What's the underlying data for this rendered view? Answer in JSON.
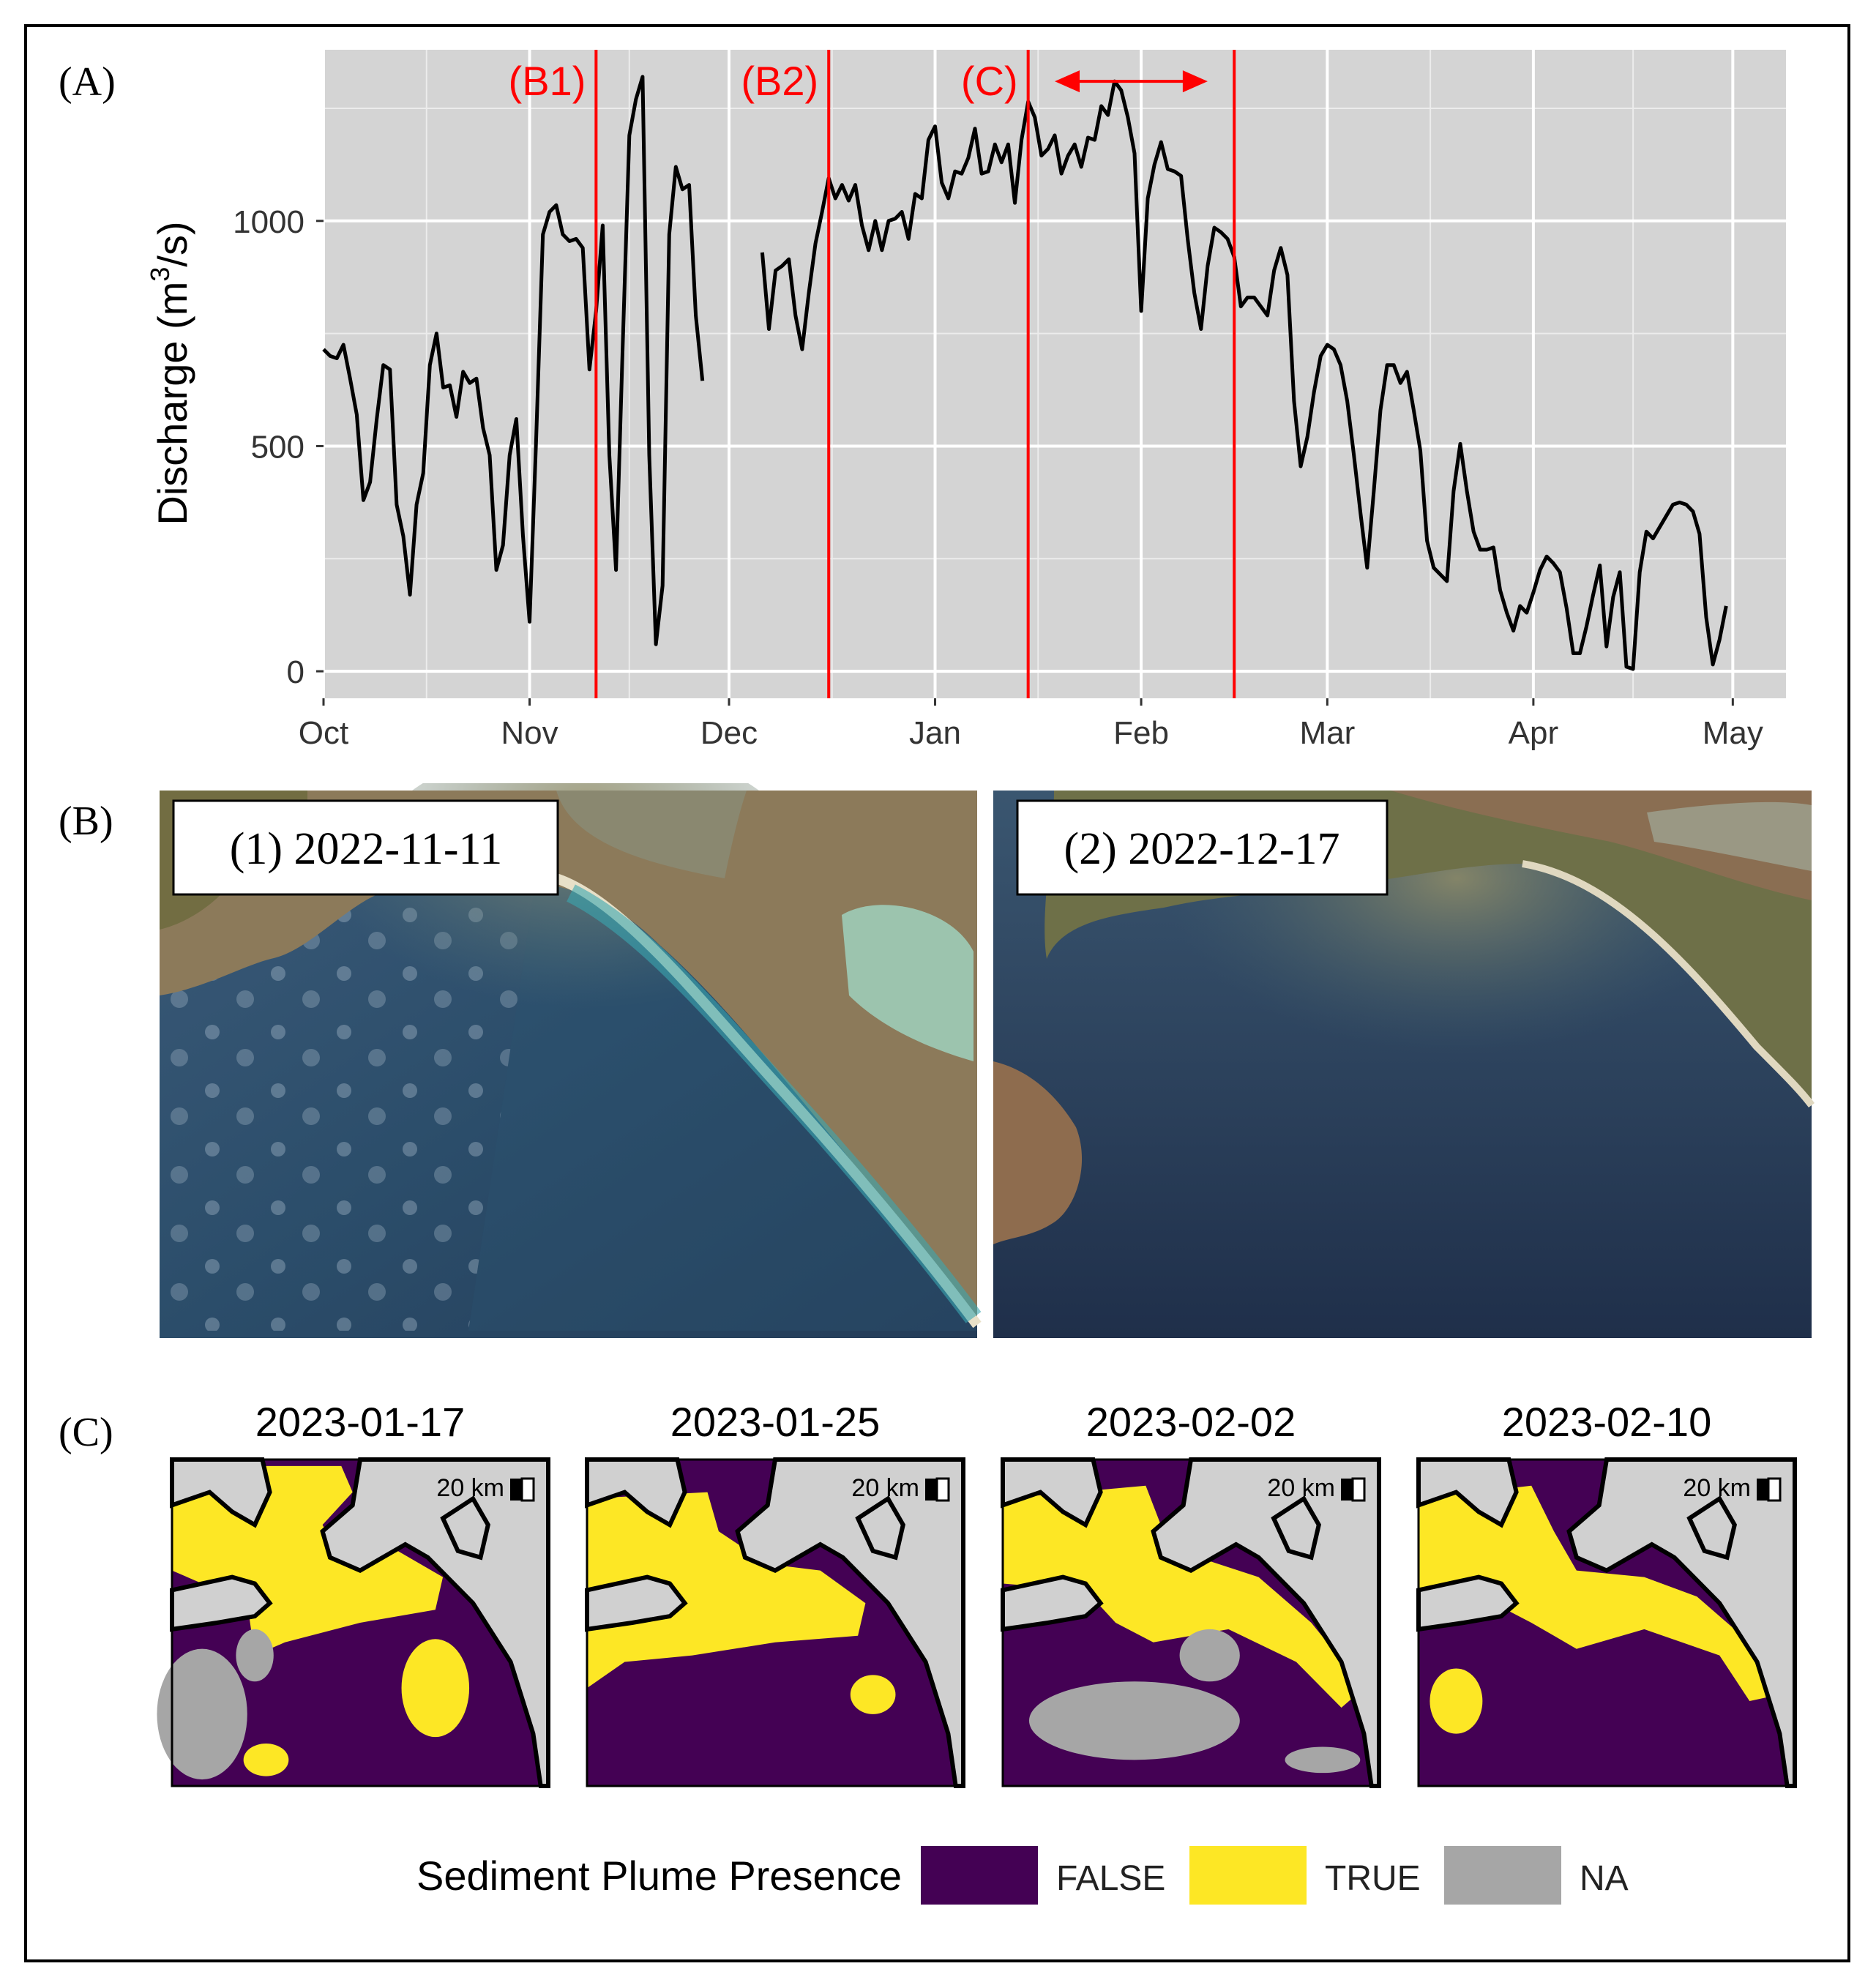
{
  "panels": {
    "a": "(A)",
    "b": "(B)",
    "c": "(C)"
  },
  "chart_data": {
    "type": "line",
    "title": "",
    "xlabel": "",
    "ylabel_main": "Discharge (m",
    "ylabel_sup": "3",
    "ylabel_tail": "/s)",
    "ylim": [
      -60,
      1380
    ],
    "xlim": [
      0,
      220
    ],
    "yticks": [
      0,
      500,
      1000
    ],
    "ytick_labels": [
      "0",
      "500",
      "1000"
    ],
    "xticks": [
      0,
      31,
      61,
      92,
      123,
      151,
      182,
      212
    ],
    "xtick_labels": [
      "Oct",
      "Nov",
      "Dec",
      "Jan",
      "Feb",
      "Mar",
      "Apr",
      "May"
    ],
    "series": [
      {
        "name": "Discharge",
        "color": "#000000",
        "segments": [
          [
            [
              0,
              715
            ],
            [
              1,
              700
            ],
            [
              2,
              695
            ],
            [
              3,
              725
            ],
            [
              4,
              650
            ],
            [
              5,
              570
            ],
            [
              6,
              380
            ],
            [
              7,
              420
            ],
            [
              8,
              560
            ],
            [
              9,
              680
            ],
            [
              10,
              670
            ],
            [
              11,
              370
            ],
            [
              12,
              300
            ],
            [
              13,
              170
            ],
            [
              14,
              370
            ],
            [
              15,
              440
            ],
            [
              16,
              680
            ],
            [
              17,
              750
            ],
            [
              18,
              630
            ],
            [
              19,
              635
            ],
            [
              20,
              565
            ],
            [
              21,
              665
            ],
            [
              22,
              640
            ],
            [
              23,
              650
            ],
            [
              24,
              540
            ],
            [
              25,
              480
            ],
            [
              26,
              225
            ],
            [
              27,
              280
            ],
            [
              28,
              480
            ],
            [
              29,
              560
            ],
            [
              30,
              300
            ],
            [
              31,
              110
            ],
            [
              32,
              520
            ],
            [
              33,
              970
            ],
            [
              34,
              1020
            ],
            [
              35,
              1035
            ],
            [
              36,
              970
            ],
            [
              37,
              955
            ],
            [
              38,
              960
            ],
            [
              39,
              940
            ],
            [
              40,
              670
            ],
            [
              41,
              800
            ],
            [
              42,
              990
            ],
            [
              43,
              480
            ],
            [
              44,
              225
            ],
            [
              45,
              720
            ],
            [
              46,
              1190
            ],
            [
              47,
              1270
            ],
            [
              48,
              1320
            ],
            [
              49,
              480
            ],
            [
              50,
              60
            ],
            [
              51,
              190
            ],
            [
              52,
              970
            ],
            [
              53,
              1120
            ],
            [
              54,
              1070
            ],
            [
              55,
              1080
            ],
            [
              56,
              790
            ],
            [
              57,
              645
            ]
          ],
          [
            [
              66,
              930
            ],
            [
              67,
              760
            ],
            [
              68,
              890
            ],
            [
              69,
              900
            ],
            [
              70,
              915
            ],
            [
              71,
              790
            ],
            [
              72,
              715
            ],
            [
              73,
              840
            ],
            [
              74,
              950
            ],
            [
              75,
              1020
            ],
            [
              76,
              1095
            ],
            [
              77,
              1050
            ],
            [
              78,
              1080
            ],
            [
              79,
              1045
            ],
            [
              80,
              1080
            ],
            [
              81,
              990
            ],
            [
              82,
              935
            ],
            [
              83,
              1000
            ],
            [
              84,
              935
            ],
            [
              85,
              1000
            ],
            [
              86,
              1005
            ],
            [
              87,
              1020
            ],
            [
              88,
              960
            ],
            [
              89,
              1060
            ],
            [
              90,
              1050
            ],
            [
              91,
              1180
            ],
            [
              92,
              1210
            ],
            [
              93,
              1085
            ],
            [
              94,
              1050
            ],
            [
              95,
              1110
            ],
            [
              96,
              1105
            ],
            [
              97,
              1140
            ],
            [
              98,
              1205
            ],
            [
              99,
              1105
            ],
            [
              100,
              1110
            ],
            [
              101,
              1170
            ],
            [
              102,
              1130
            ],
            [
              103,
              1170
            ],
            [
              104,
              1040
            ],
            [
              105,
              1180
            ],
            [
              106,
              1265
            ],
            [
              107,
              1230
            ],
            [
              108,
              1145
            ],
            [
              109,
              1160
            ],
            [
              110,
              1190
            ],
            [
              111,
              1105
            ],
            [
              112,
              1145
            ],
            [
              113,
              1170
            ],
            [
              114,
              1120
            ],
            [
              115,
              1185
            ],
            [
              116,
              1180
            ],
            [
              117,
              1255
            ],
            [
              118,
              1235
            ],
            [
              119,
              1310
            ],
            [
              120,
              1290
            ],
            [
              121,
              1230
            ],
            [
              122,
              1150
            ],
            [
              123,
              800
            ],
            [
              124,
              1050
            ],
            [
              125,
              1125
            ],
            [
              126,
              1175
            ],
            [
              127,
              1115
            ],
            [
              128,
              1110
            ],
            [
              129,
              1100
            ],
            [
              130,
              960
            ],
            [
              131,
              840
            ],
            [
              132,
              760
            ],
            [
              133,
              900
            ],
            [
              134,
              985
            ],
            [
              135,
              975
            ],
            [
              136,
              960
            ],
            [
              137,
              920
            ],
            [
              138,
              810
            ],
            [
              139,
              830
            ],
            [
              140,
              830
            ],
            [
              141,
              810
            ],
            [
              142,
              790
            ],
            [
              143,
              890
            ],
            [
              144,
              940
            ],
            [
              145,
              880
            ],
            [
              146,
              600
            ],
            [
              147,
              455
            ],
            [
              148,
              520
            ],
            [
              149,
              620
            ],
            [
              150,
              700
            ],
            [
              151,
              725
            ],
            [
              152,
              715
            ],
            [
              153,
              680
            ],
            [
              154,
              600
            ],
            [
              155,
              480
            ],
            [
              156,
              350
            ],
            [
              157,
              230
            ],
            [
              158,
              400
            ],
            [
              159,
              580
            ],
            [
              160,
              680
            ],
            [
              161,
              680
            ],
            [
              162,
              640
            ],
            [
              163,
              665
            ],
            [
              164,
              580
            ],
            [
              165,
              490
            ],
            [
              166,
              290
            ],
            [
              167,
              230
            ],
            [
              168,
              215
            ],
            [
              169,
              200
            ],
            [
              170,
              400
            ],
            [
              171,
              505
            ],
            [
              172,
              400
            ],
            [
              173,
              310
            ],
            [
              174,
              270
            ],
            [
              175,
              270
            ],
            [
              176,
              275
            ],
            [
              177,
              180
            ],
            [
              178,
              130
            ],
            [
              179,
              90
            ],
            [
              180,
              145
            ],
            [
              181,
              130
            ],
            [
              182,
              175
            ],
            [
              183,
              225
            ],
            [
              184,
              255
            ],
            [
              185,
              240
            ],
            [
              186,
              220
            ],
            [
              187,
              140
            ],
            [
              188,
              40
            ],
            [
              189,
              40
            ],
            [
              190,
              100
            ],
            [
              191,
              170
            ],
            [
              192,
              235
            ],
            [
              193,
              55
            ],
            [
              194,
              165
            ],
            [
              195,
              220
            ],
            [
              196,
              10
            ],
            [
              197,
              5
            ],
            [
              198,
              220
            ],
            [
              199,
              310
            ],
            [
              200,
              295
            ],
            [
              201,
              320
            ],
            [
              202,
              345
            ],
            [
              203,
              370
            ],
            [
              204,
              375
            ],
            [
              205,
              370
            ],
            [
              206,
              355
            ],
            [
              207,
              305
            ],
            [
              208,
              120
            ],
            [
              209,
              15
            ],
            [
              210,
              70
            ],
            [
              211,
              145
            ]
          ]
        ]
      }
    ],
    "vlines": {
      "color": "#ff0000",
      "x": [
        41,
        76,
        106,
        137
      ]
    },
    "annotations": [
      {
        "text": "(B1)",
        "x": 41
      },
      {
        "text": "(B2)",
        "x": 76
      },
      {
        "text": "(C)",
        "x": 106
      }
    ],
    "arrow": {
      "x0": 110,
      "x1": 133,
      "y": 1310,
      "color": "#ff0000"
    }
  },
  "photos": [
    {
      "label": "(1) 2022-11-11"
    },
    {
      "label": "(2) 2022-12-17"
    }
  ],
  "maps": [
    {
      "date": "2023-01-17",
      "scale": "20 km"
    },
    {
      "date": "2023-01-25",
      "scale": "20 km"
    },
    {
      "date": "2023-02-02",
      "scale": "20 km"
    },
    {
      "date": "2023-02-10",
      "scale": "20 km"
    }
  ],
  "legend": {
    "title": "Sediment Plume Presence",
    "items": [
      {
        "label": "FALSE",
        "color": "#440154"
      },
      {
        "label": "TRUE",
        "color": "#fde725"
      },
      {
        "label": "NA",
        "color": "#a6a6a6"
      }
    ]
  }
}
